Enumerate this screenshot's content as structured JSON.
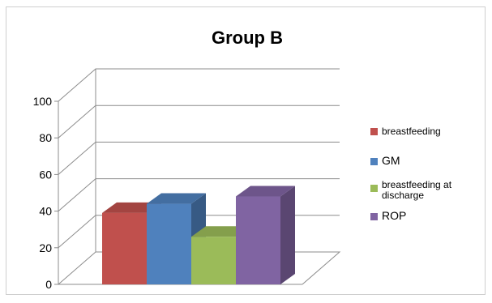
{
  "chart_data": {
    "type": "bar",
    "title": "Group B",
    "categories": [
      "breastfeeding",
      "GM",
      "breastfeeding at discharge",
      "ROP"
    ],
    "values": [
      39,
      44,
      26,
      48
    ],
    "colors": [
      "#c0504d",
      "#4f81bd",
      "#9bbb59",
      "#8064a2"
    ],
    "ylim": [
      0,
      100
    ],
    "yticks": [
      "0",
      "20",
      "40",
      "60",
      "80",
      "100"
    ],
    "xlabel": "",
    "ylabel": "",
    "grid": true,
    "legend": {
      "position": "right",
      "entries": [
        {
          "label": "breastfeeding",
          "color": "#c0504d"
        },
        {
          "label": "GM",
          "color": "#4f81bd"
        },
        {
          "label": "breastfeeding at discharge",
          "color": "#9bbb59"
        },
        {
          "label": "ROP",
          "color": "#8064a2"
        }
      ]
    }
  }
}
